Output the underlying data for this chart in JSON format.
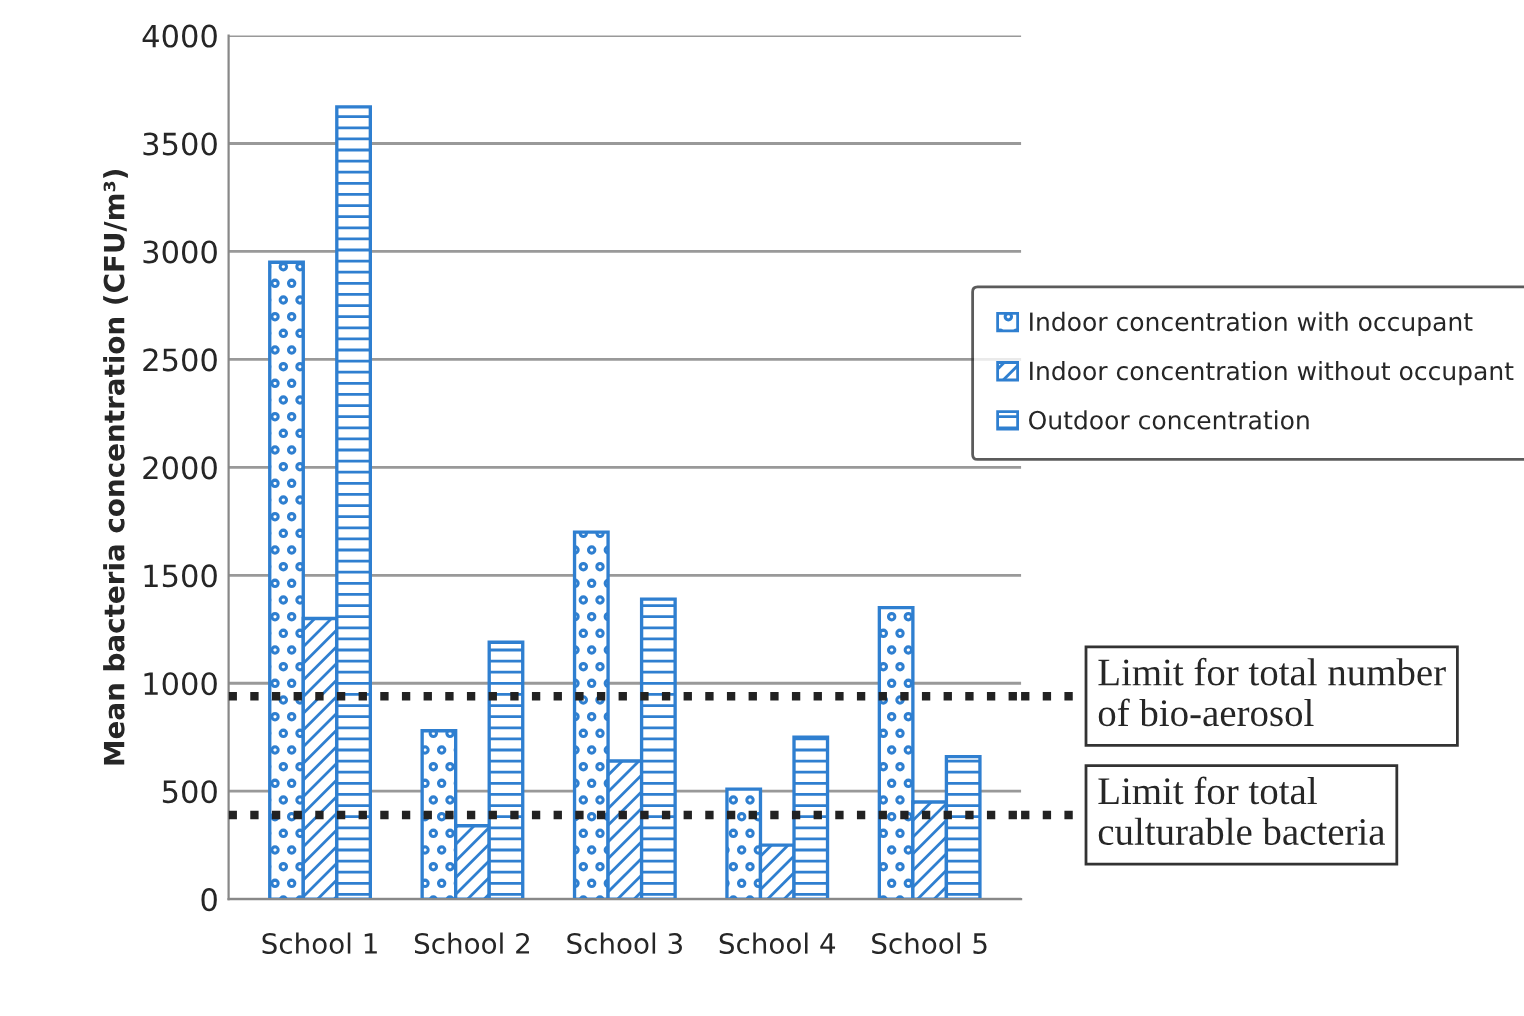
{
  "chart_data": {
    "type": "bar",
    "ylabel": "Mean bacteria concentration (CFU/m³)",
    "categories": [
      "School 1",
      "School 2",
      "School 3",
      "School 4",
      "School 5"
    ],
    "series": [
      {
        "name": "Indoor concentration with occupant",
        "color": "#2f7fd0",
        "values": [
          2950,
          780,
          1700,
          510,
          1350
        ]
      },
      {
        "name": "Indoor concentration without occupant",
        "color": "#2f7fd0",
        "values": [
          1300,
          340,
          640,
          250,
          450
        ]
      },
      {
        "name": "Outdoor concentration",
        "color": "#2f7fd0",
        "values": [
          3670,
          1190,
          1390,
          750,
          660
        ]
      }
    ],
    "ylim": [
      0,
      4000
    ],
    "yticks": [
      0,
      500,
      1000,
      1500,
      2000,
      2500,
      3000,
      3500,
      4000
    ],
    "grid": "y",
    "legend": "right",
    "ref_lines": [
      {
        "axis": "y",
        "value": 940,
        "label": "Limit for total number\nof bio-aerosol",
        "color": "#222222",
        "line_style": "dotted"
      },
      {
        "axis": "y",
        "value": 390,
        "label": "Limit for total\nculturable bacteria",
        "color": "#222222",
        "line_style": "dotted"
      }
    ]
  }
}
